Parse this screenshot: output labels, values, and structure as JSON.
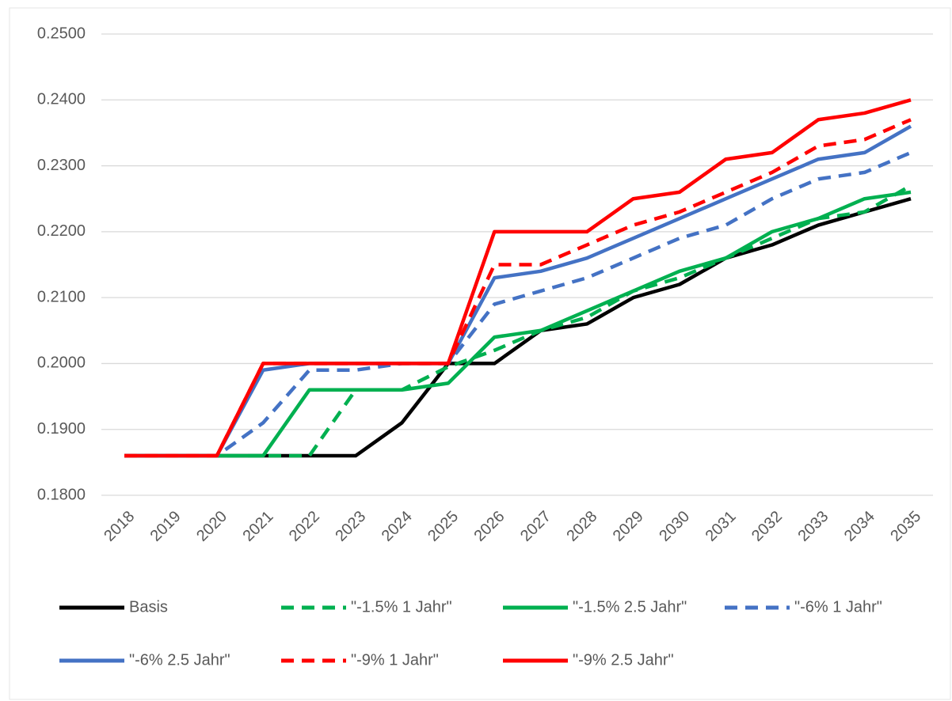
{
  "chart_data": {
    "type": "line",
    "categories": [
      "2018",
      "2019",
      "2020",
      "2021",
      "2022",
      "2023",
      "2024",
      "2025",
      "2026",
      "2027",
      "2028",
      "2029",
      "2030",
      "2031",
      "2032",
      "2033",
      "2034",
      "2035"
    ],
    "ylim": [
      0.18,
      0.25
    ],
    "yticks": [
      {
        "value": 0.18,
        "label": "0.1800"
      },
      {
        "value": 0.19,
        "label": "0.1900"
      },
      {
        "value": 0.2,
        "label": "0.2000"
      },
      {
        "value": 0.21,
        "label": "0.2100"
      },
      {
        "value": 0.22,
        "label": "0.2200"
      },
      {
        "value": 0.23,
        "label": "0.2300"
      },
      {
        "value": 0.24,
        "label": "0.2400"
      },
      {
        "value": 0.25,
        "label": "0.2500"
      }
    ],
    "grid": true,
    "legend": "bottom",
    "series": [
      {
        "name": "Basis",
        "color": "#000000",
        "dashed": false,
        "values": [
          0.186,
          0.186,
          0.186,
          0.186,
          0.186,
          0.186,
          0.191,
          0.2,
          0.2,
          0.205,
          0.206,
          0.21,
          0.212,
          0.216,
          0.218,
          0.221,
          0.223,
          0.225
        ]
      },
      {
        "name": "\"-1.5% 1 Jahr\"",
        "color": "#00b050",
        "dashed": true,
        "values": [
          0.186,
          0.186,
          0.186,
          0.186,
          0.186,
          0.196,
          0.196,
          0.1995,
          0.202,
          0.205,
          0.207,
          0.211,
          0.213,
          0.216,
          0.219,
          0.222,
          0.223,
          0.227
        ]
      },
      {
        "name": "\"-1.5% 2.5 Jahr\"",
        "color": "#00b050",
        "dashed": false,
        "values": [
          0.186,
          0.186,
          0.186,
          0.186,
          0.196,
          0.196,
          0.196,
          0.197,
          0.204,
          0.205,
          0.208,
          0.211,
          0.214,
          0.216,
          0.22,
          0.222,
          0.225,
          0.226
        ]
      },
      {
        "name": "\"-6% 1 Jahr\"",
        "color": "#4472c4",
        "dashed": true,
        "values": [
          0.186,
          0.186,
          0.186,
          0.191,
          0.199,
          0.199,
          0.2,
          0.2,
          0.209,
          0.211,
          0.213,
          0.216,
          0.219,
          0.221,
          0.225,
          0.228,
          0.229,
          0.232
        ]
      },
      {
        "name": "\"-6% 2.5 Jahr\"",
        "color": "#4472c4",
        "dashed": false,
        "values": [
          0.186,
          0.186,
          0.186,
          0.199,
          0.2,
          0.2,
          0.2,
          0.2,
          0.213,
          0.214,
          0.216,
          0.219,
          0.222,
          0.225,
          0.228,
          0.231,
          0.232,
          0.236
        ]
      },
      {
        "name": "\"-9% 1 Jahr\"",
        "color": "#ff0000",
        "dashed": true,
        "values": [
          0.186,
          0.186,
          0.186,
          0.2,
          0.2,
          0.2,
          0.2,
          0.2,
          0.215,
          0.215,
          0.218,
          0.221,
          0.223,
          0.226,
          0.229,
          0.233,
          0.234,
          0.237
        ]
      },
      {
        "name": "\"-9% 2.5 Jahr\"",
        "color": "#ff0000",
        "dashed": false,
        "values": [
          0.186,
          0.186,
          0.186,
          0.2,
          0.2,
          0.2,
          0.2,
          0.2,
          0.22,
          0.22,
          0.22,
          0.225,
          0.226,
          0.231,
          0.232,
          0.237,
          0.238,
          0.24
        ]
      }
    ]
  }
}
